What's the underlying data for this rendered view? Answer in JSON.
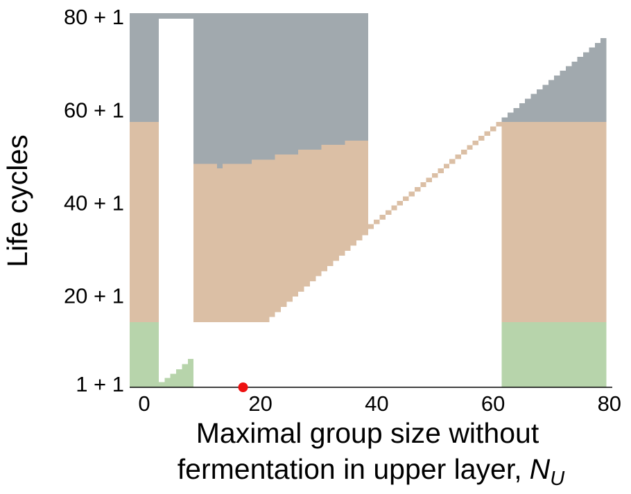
{
  "chart_data": {
    "type": "region",
    "ylabel": "Life cycles",
    "xlabel": [
      "Maximal group size without",
      "fermentation in upper layer,"
    ],
    "xlabel_symbol": "N",
    "xlabel_subscript": "U",
    "xlim": [
      -2.5,
      80.5
    ],
    "ylim": [
      0.7,
      81.2
    ],
    "xticks": [
      0,
      20,
      40,
      60,
      80
    ],
    "yticks": [
      {
        "value": 1,
        "label": "1 + 1"
      },
      {
        "value": 20,
        "label": "20 + 1"
      },
      {
        "value": 40,
        "label": "40 + 1"
      },
      {
        "value": 60,
        "label": "60 + 1"
      },
      {
        "value": 80,
        "label": "80 + 1"
      }
    ],
    "blocks": [
      {
        "color": "#a1a9ae",
        "x": [
          -2.5,
          2.5,
          8.5,
          12.5,
          13.5,
          18.5,
          22.5,
          26.5,
          30.5,
          34.5,
          38.5
        ],
        "y0": [
          57.8,
          80,
          48.8,
          47.8,
          48.8,
          49.7,
          50.8,
          51.8,
          52.9,
          53.8
        ],
        "y1": [
          81.2,
          81.2,
          81.2,
          81.2,
          81.2,
          81.2,
          81.2,
          81.2,
          81.2,
          81.2
        ]
      },
      {
        "color": "#dbbfa5",
        "x": [
          -2.5,
          2.5
        ],
        "y0": [
          14.7
        ],
        "y1": [
          57.8
        ]
      },
      {
        "color": "#b7d4ab",
        "x": [
          -2.5,
          2.5,
          3.5,
          4.5,
          5.5,
          6.5,
          7.5,
          8.5
        ],
        "y0": [
          0.7,
          0.7,
          0.7,
          0.7,
          0.7,
          0.7,
          0.7
        ],
        "y1": [
          14.7,
          1.8,
          2.7,
          3.6,
          4.6,
          5.7,
          6.8
        ]
      },
      {
        "color": "#dbbfa5",
        "x": [
          8.5,
          12.5,
          13.5,
          18.5,
          21.5,
          22.5,
          23.5,
          24.5,
          25.5,
          26.5,
          27.5,
          28.5,
          29.5,
          30.5,
          31.5,
          32.5,
          33.5,
          34.5,
          35.5,
          36.5,
          37.5,
          38.5
        ],
        "y0": [
          14.7,
          14.7,
          14.7,
          14.7,
          15.8,
          16.9,
          18.0,
          19.1,
          20.2,
          21.3,
          22.4,
          23.5,
          24.6,
          25.7,
          26.8,
          27.9,
          29.0,
          30.1,
          31.2,
          32.3,
          33.4
        ],
        "y1": [
          48.8,
          47.8,
          48.8,
          49.7,
          49.7,
          50.8,
          50.8,
          50.8,
          50.8,
          51.8,
          51.8,
          51.8,
          51.8,
          52.9,
          52.9,
          52.9,
          52.9,
          53.8,
          53.8,
          53.8,
          53.8
        ]
      },
      {
        "color": "#dbbfa5",
        "x": [
          38.5,
          39.5,
          40.5,
          41.5,
          42.5,
          43.5,
          44.5,
          45.5,
          46.5,
          47.5,
          48.5,
          49.5,
          50.5,
          51.5,
          52.5,
          53.5,
          54.5,
          55.5,
          56.5,
          57.5,
          58.5,
          59.5,
          60.5,
          61.5
        ],
        "y0": [
          34.8,
          35.8,
          36.8,
          37.8,
          38.8,
          39.8,
          40.8,
          41.8,
          42.8,
          43.8,
          44.8,
          45.8,
          46.8,
          47.8,
          48.8,
          49.8,
          50.8,
          51.8,
          52.8,
          53.8,
          54.8,
          55.8,
          56.8
        ],
        "y1": [
          35.8,
          36.8,
          37.8,
          38.8,
          39.8,
          40.8,
          41.8,
          42.8,
          43.8,
          44.8,
          45.8,
          46.8,
          47.8,
          48.8,
          49.8,
          50.8,
          51.8,
          52.8,
          53.8,
          54.8,
          55.8,
          56.8,
          57.8
        ]
      },
      {
        "color": "#a1a9ae",
        "x": [
          61.5,
          62.5,
          63.5,
          64.5,
          65.5,
          66.5,
          67.5,
          68.5,
          69.5,
          70.5,
          71.5,
          72.5,
          73.5,
          74.5,
          75.5,
          76.5,
          77.5,
          78.5,
          79.5
        ],
        "y0": [
          57.8,
          57.8,
          57.8,
          57.8,
          57.8,
          57.8,
          57.8,
          57.8,
          57.8,
          57.8,
          57.8,
          57.8,
          57.8,
          57.8,
          57.8,
          57.8,
          57.8,
          57.8
        ],
        "y1": [
          58.8,
          59.8,
          60.8,
          61.8,
          62.8,
          63.8,
          64.8,
          65.8,
          66.8,
          67.8,
          68.8,
          69.8,
          70.8,
          71.8,
          72.8,
          73.8,
          74.8,
          75.8
        ]
      },
      {
        "color": "#dbbfa5",
        "x": [
          61.5,
          79.5
        ],
        "y0": [
          14.7
        ],
        "y1": [
          57.8
        ]
      },
      {
        "color": "#b7d4ab",
        "x": [
          61.5,
          79.5
        ],
        "y0": [
          0.7
        ],
        "y1": [
          14.7
        ]
      }
    ],
    "marker": {
      "x": 17,
      "y": 0.7,
      "color": "#ee1111"
    }
  }
}
